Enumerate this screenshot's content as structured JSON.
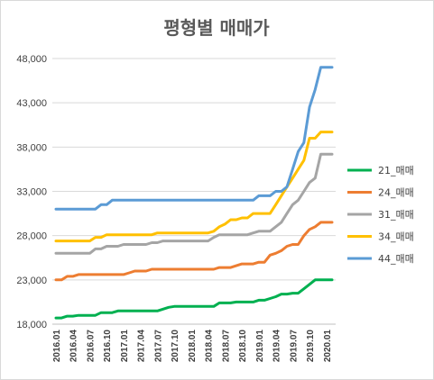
{
  "chart_data": {
    "type": "line",
    "title": "평형별 매매가",
    "xlabel": "",
    "ylabel": "",
    "ylim": [
      18000,
      48000
    ],
    "yticks": [
      18000,
      23000,
      28000,
      33000,
      38000,
      43000,
      48000
    ],
    "ytick_labels": [
      "18,000",
      "23,000",
      "28,000",
      "33,000",
      "38,000",
      "43,000",
      "48,000"
    ],
    "xtick_labels": [
      "2016.01",
      "2016.04",
      "2016.07",
      "2016.10",
      "2017.01",
      "2017.04",
      "2017.07",
      "2017.10",
      "2018.01",
      "2018.04",
      "2018.07",
      "2018.10",
      "2019.01",
      "2019.04",
      "2019.07",
      "2019.10",
      "2020.01"
    ],
    "grid": true,
    "legend_position": "right",
    "x": [
      "2016.01",
      "2016.02",
      "2016.03",
      "2016.04",
      "2016.05",
      "2016.06",
      "2016.07",
      "2016.08",
      "2016.09",
      "2016.10",
      "2016.11",
      "2016.12",
      "2017.01",
      "2017.02",
      "2017.03",
      "2017.04",
      "2017.05",
      "2017.06",
      "2017.07",
      "2017.08",
      "2017.09",
      "2017.10",
      "2017.11",
      "2017.12",
      "2018.01",
      "2018.02",
      "2018.03",
      "2018.04",
      "2018.05",
      "2018.06",
      "2018.07",
      "2018.08",
      "2018.09",
      "2018.10",
      "2018.11",
      "2018.12",
      "2019.01",
      "2019.02",
      "2019.03",
      "2019.04",
      "2019.05",
      "2019.06",
      "2019.07",
      "2019.08",
      "2019.09",
      "2019.10",
      "2019.11",
      "2019.12",
      "2020.01",
      "2020.02"
    ],
    "series": [
      {
        "name": "21_매매",
        "color": "#00b050",
        "values": [
          18700,
          18700,
          18900,
          18900,
          19000,
          19000,
          19000,
          19000,
          19300,
          19300,
          19300,
          19500,
          19500,
          19500,
          19500,
          19500,
          19500,
          19500,
          19500,
          19700,
          19900,
          20000,
          20000,
          20000,
          20000,
          20000,
          20000,
          20000,
          20000,
          20400,
          20400,
          20400,
          20500,
          20500,
          20500,
          20500,
          20700,
          20700,
          20900,
          21100,
          21400,
          21400,
          21500,
          21500,
          22000,
          22500,
          23000,
          23000,
          23000,
          23000
        ]
      },
      {
        "name": "24_매매",
        "color": "#ed7d31",
        "values": [
          23000,
          23000,
          23400,
          23400,
          23600,
          23600,
          23600,
          23600,
          23600,
          23600,
          23600,
          23600,
          23600,
          23800,
          24000,
          24000,
          24000,
          24200,
          24200,
          24200,
          24200,
          24200,
          24200,
          24200,
          24200,
          24200,
          24200,
          24200,
          24200,
          24400,
          24400,
          24400,
          24600,
          24800,
          24800,
          24800,
          25000,
          25000,
          25800,
          26000,
          26300,
          26800,
          27000,
          27000,
          28000,
          28700,
          29000,
          29500,
          29500,
          29500
        ]
      },
      {
        "name": "31_매매",
        "color": "#a5a5a5",
        "values": [
          26000,
          26000,
          26000,
          26000,
          26000,
          26000,
          26000,
          26500,
          26500,
          26800,
          26800,
          26800,
          27000,
          27000,
          27000,
          27000,
          27000,
          27200,
          27200,
          27400,
          27400,
          27400,
          27400,
          27400,
          27400,
          27400,
          27400,
          27400,
          27800,
          28100,
          28100,
          28100,
          28100,
          28100,
          28100,
          28300,
          28500,
          28500,
          28500,
          29000,
          29500,
          30500,
          31500,
          32000,
          33000,
          34000,
          34500,
          37200,
          37200,
          37200
        ]
      },
      {
        "name": "34_매매",
        "color": "#ffc000",
        "values": [
          27400,
          27400,
          27400,
          27400,
          27400,
          27400,
          27400,
          27800,
          27800,
          28100,
          28100,
          28100,
          28100,
          28100,
          28100,
          28100,
          28100,
          28100,
          28300,
          28300,
          28300,
          28300,
          28300,
          28300,
          28300,
          28300,
          28300,
          28300,
          28500,
          29000,
          29300,
          29800,
          29800,
          30000,
          30000,
          30500,
          30500,
          30500,
          30500,
          31500,
          32500,
          33500,
          34500,
          35500,
          36500,
          39000,
          39000,
          39700,
          39700,
          39700
        ]
      },
      {
        "name": "44_매매",
        "color": "#5b9bd5",
        "values": [
          31000,
          31000,
          31000,
          31000,
          31000,
          31000,
          31000,
          31000,
          31500,
          31500,
          32000,
          32000,
          32000,
          32000,
          32000,
          32000,
          32000,
          32000,
          32000,
          32000,
          32000,
          32000,
          32000,
          32000,
          32000,
          32000,
          32000,
          32000,
          32000,
          32000,
          32000,
          32000,
          32000,
          32000,
          32000,
          32000,
          32500,
          32500,
          32500,
          33000,
          33000,
          33500,
          35500,
          37500,
          38500,
          42500,
          44500,
          47000,
          47000,
          47000
        ]
      }
    ]
  }
}
